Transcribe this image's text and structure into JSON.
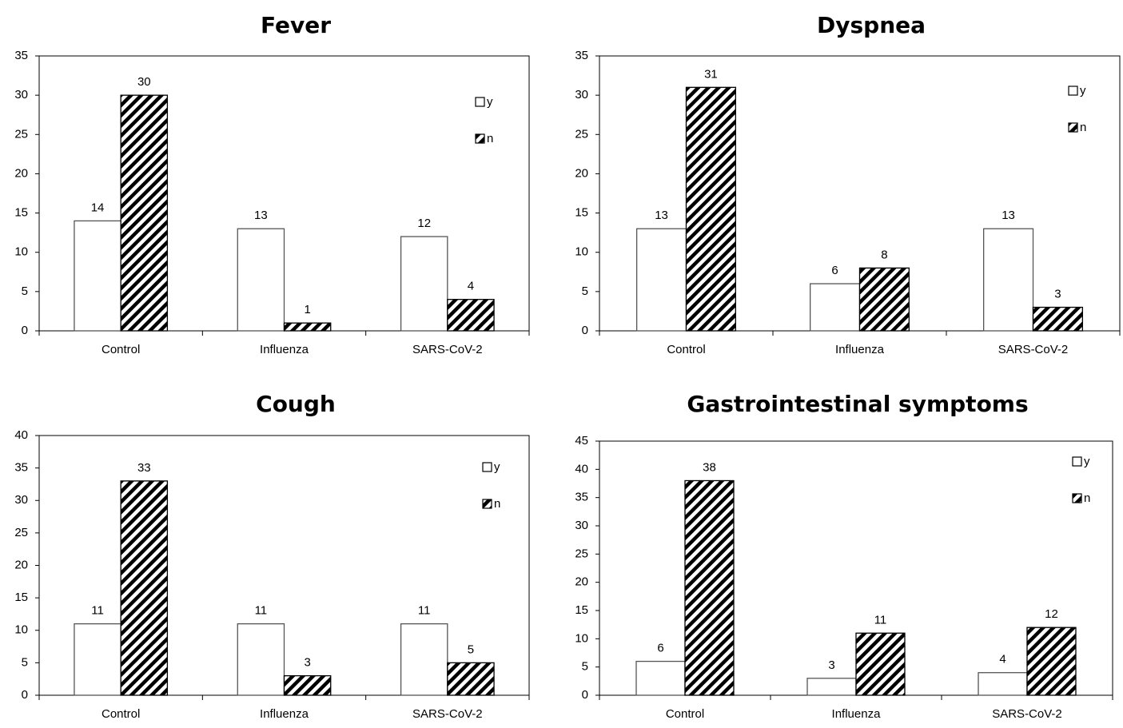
{
  "chart_data": [
    {
      "type": "bar",
      "title": "Fever",
      "categories": [
        "Control",
        "Influenza",
        "SARS-CoV-2"
      ],
      "series": [
        {
          "name": "y",
          "values": [
            14,
            13,
            12
          ]
        },
        {
          "name": "n",
          "values": [
            30,
            1,
            4
          ]
        }
      ],
      "ylim": [
        0,
        35
      ],
      "yticks": [
        0,
        5,
        10,
        15,
        20,
        25,
        30,
        35
      ],
      "legend": "top-right",
      "grid": false
    },
    {
      "type": "bar",
      "title": "Dyspnea",
      "categories": [
        "Control",
        "Influenza",
        "SARS-CoV-2"
      ],
      "series": [
        {
          "name": "y",
          "values": [
            13,
            6,
            13
          ]
        },
        {
          "name": "n",
          "values": [
            31,
            8,
            3
          ]
        }
      ],
      "ylim": [
        0,
        35
      ],
      "yticks": [
        0,
        5,
        10,
        15,
        20,
        25,
        30,
        35
      ],
      "legend": "top-right",
      "grid": false
    },
    {
      "type": "bar",
      "title": "Cough",
      "categories": [
        "Control",
        "Influenza",
        "SARS-CoV-2"
      ],
      "series": [
        {
          "name": "y",
          "values": [
            11,
            11,
            11
          ]
        },
        {
          "name": "n",
          "values": [
            33,
            3,
            5
          ]
        }
      ],
      "ylim": [
        0,
        40
      ],
      "yticks": [
        0,
        5,
        10,
        15,
        20,
        25,
        30,
        35,
        40
      ],
      "legend": "top-right",
      "grid": false
    },
    {
      "type": "bar",
      "title": "Gastrointestinal symptoms",
      "categories": [
        "Control",
        "Influenza",
        "SARS-CoV-2"
      ],
      "series": [
        {
          "name": "y",
          "values": [
            6,
            3,
            4
          ]
        },
        {
          "name": "n",
          "values": [
            38,
            11,
            12
          ]
        }
      ],
      "ylim": [
        0,
        45
      ],
      "yticks": [
        0,
        5,
        10,
        15,
        20,
        25,
        30,
        35,
        40,
        45
      ],
      "legend": "top-right",
      "grid": false
    }
  ]
}
